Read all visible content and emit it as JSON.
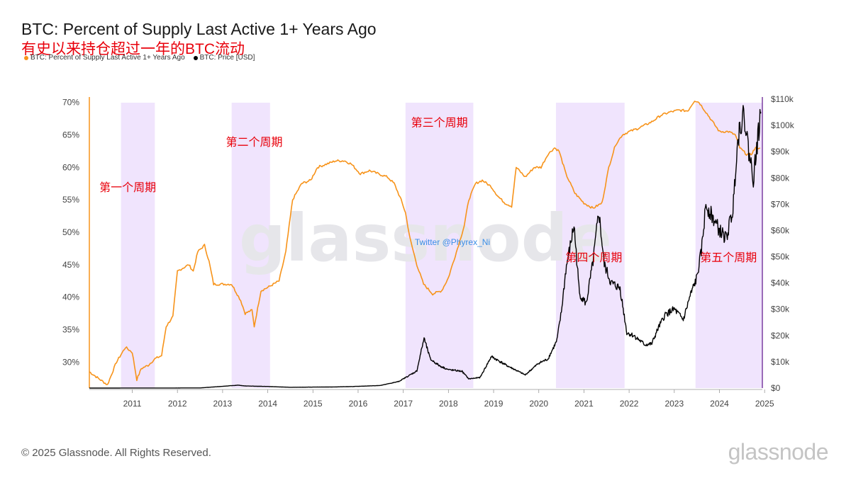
{
  "header": {
    "title": "BTC: Percent of Supply Last Active 1+ Years Ago",
    "subtitle": "有史以来持仓超过一年的BTC流动"
  },
  "legend": [
    {
      "label": "BTC: Percent of Supply Last Active 1+ Years Ago",
      "color": "#f7931a"
    },
    {
      "label": "BTC: Price [USD]",
      "color": "#000000"
    }
  ],
  "footer": {
    "copyright": "© 2025 Glassnode. All Rights Reserved.",
    "brand": "glassnode"
  },
  "watermark": "glassnode",
  "credit": "Twitter @Phyrex_Ni",
  "chart_data": {
    "type": "line",
    "x_range": [
      2010.55,
      2025.45
    ],
    "x_ticks": [
      "2011",
      "2012",
      "2013",
      "2014",
      "2015",
      "2016",
      "2017",
      "2018",
      "2019",
      "2020",
      "2021",
      "2022",
      "2023",
      "2024",
      "2025"
    ],
    "y_left": {
      "range": [
        26,
        70.5
      ],
      "ticks": [
        "70%",
        "65%",
        "60%",
        "55%",
        "50%",
        "45%",
        "40%",
        "35%",
        "30%"
      ],
      "values": [
        70,
        65,
        60,
        55,
        50,
        45,
        40,
        35,
        30
      ]
    },
    "y_right": {
      "range": [
        0,
        110000
      ],
      "ticks": [
        "$110k",
        "$100k",
        "$90k",
        "$80k",
        "$70k",
        "$60k",
        "$50k",
        "$40k",
        "$30k",
        "$20k",
        "$10k",
        "$0"
      ],
      "values": [
        110000,
        100000,
        90000,
        80000,
        70000,
        60000,
        50000,
        40000,
        30000,
        20000,
        10000,
        0
      ]
    },
    "series": [
      {
        "name": "BTC: Percent of Supply Last Active 1+ Years Ago",
        "axis": "left",
        "color": "#f7931a",
        "points": [
          [
            2010.55,
            28.5
          ],
          [
            2010.75,
            27.5
          ],
          [
            2010.95,
            26.5
          ],
          [
            2011.15,
            30
          ],
          [
            2011.35,
            32.3
          ],
          [
            2011.5,
            31.5
          ],
          [
            2011.6,
            27.3
          ],
          [
            2011.7,
            29
          ],
          [
            2011.85,
            29.5
          ],
          [
            2012.0,
            30.5
          ],
          [
            2012.15,
            31
          ],
          [
            2012.25,
            35.5
          ],
          [
            2012.4,
            37
          ],
          [
            2012.5,
            44
          ],
          [
            2012.75,
            45
          ],
          [
            2012.85,
            44
          ],
          [
            2012.95,
            47
          ],
          [
            2013.1,
            48
          ],
          [
            2013.2,
            45.5
          ],
          [
            2013.3,
            42
          ],
          [
            2013.45,
            42
          ],
          [
            2013.7,
            42
          ],
          [
            2013.9,
            39.5
          ],
          [
            2014.0,
            37.5
          ],
          [
            2014.15,
            38
          ],
          [
            2014.2,
            35.5
          ],
          [
            2014.35,
            41
          ],
          [
            2014.5,
            41.5
          ],
          [
            2014.75,
            42.5
          ],
          [
            2014.9,
            47
          ],
          [
            2015.05,
            55
          ],
          [
            2015.25,
            57.5
          ],
          [
            2015.45,
            58
          ],
          [
            2015.6,
            60
          ],
          [
            2015.8,
            60.5
          ],
          [
            2016.0,
            61
          ],
          [
            2016.2,
            61
          ],
          [
            2016.35,
            60.5
          ],
          [
            2016.55,
            59
          ],
          [
            2016.75,
            59.5
          ],
          [
            2016.95,
            59
          ],
          [
            2017.15,
            58.5
          ],
          [
            2017.3,
            57.5
          ],
          [
            2017.45,
            55
          ],
          [
            2017.55,
            53
          ],
          [
            2017.65,
            49
          ],
          [
            2017.8,
            45
          ],
          [
            2017.95,
            42
          ],
          [
            2018.15,
            40.5
          ],
          [
            2018.35,
            41
          ],
          [
            2018.5,
            43
          ],
          [
            2018.7,
            47.5
          ],
          [
            2018.85,
            51
          ],
          [
            2018.95,
            55
          ],
          [
            2019.1,
            57.5
          ],
          [
            2019.25,
            58
          ],
          [
            2019.45,
            57
          ],
          [
            2019.6,
            55.5
          ],
          [
            2019.75,
            54.5
          ],
          [
            2019.9,
            54
          ],
          [
            2020.0,
            60
          ],
          [
            2020.2,
            58.5
          ],
          [
            2020.4,
            60
          ],
          [
            2020.55,
            60
          ],
          [
            2020.7,
            62
          ],
          [
            2020.85,
            63
          ],
          [
            2020.95,
            62.5
          ],
          [
            2021.1,
            59
          ],
          [
            2021.3,
            56
          ],
          [
            2021.5,
            54.5
          ],
          [
            2021.7,
            53.7
          ],
          [
            2021.9,
            54.5
          ],
          [
            2022.05,
            60
          ],
          [
            2022.2,
            63.5
          ],
          [
            2022.35,
            65
          ],
          [
            2022.5,
            65.5
          ],
          [
            2022.7,
            66
          ],
          [
            2023.0,
            67
          ],
          [
            2023.2,
            68
          ],
          [
            2023.4,
            68.5
          ],
          [
            2023.6,
            68.8
          ],
          [
            2023.8,
            68.7
          ],
          [
            2023.95,
            70.3
          ],
          [
            2024.05,
            70
          ],
          [
            2024.2,
            68.5
          ],
          [
            2024.35,
            67
          ],
          [
            2024.5,
            65.5
          ],
          [
            2024.7,
            65.5
          ],
          [
            2024.85,
            65
          ],
          [
            2024.95,
            63
          ],
          [
            2025.1,
            62
          ],
          [
            2025.2,
            62
          ],
          [
            2025.3,
            63
          ],
          [
            2025.4,
            63
          ]
        ]
      },
      {
        "name": "BTC: Price [USD]",
        "axis": "right",
        "color": "#000000",
        "points": [
          [
            2010.55,
            0
          ],
          [
            2013.0,
            50
          ],
          [
            2013.85,
            1100
          ],
          [
            2014.0,
            800
          ],
          [
            2014.5,
            600
          ],
          [
            2015.0,
            300
          ],
          [
            2016.0,
            430
          ],
          [
            2016.5,
            650
          ],
          [
            2017.0,
            1000
          ],
          [
            2017.4,
            2500
          ],
          [
            2017.6,
            4500
          ],
          [
            2017.8,
            6500
          ],
          [
            2017.96,
            19000
          ],
          [
            2018.1,
            11000
          ],
          [
            2018.3,
            8500
          ],
          [
            2018.5,
            7000
          ],
          [
            2018.8,
            6400
          ],
          [
            2018.95,
            3500
          ],
          [
            2019.2,
            4000
          ],
          [
            2019.45,
            12000
          ],
          [
            2019.6,
            10500
          ],
          [
            2019.8,
            8500
          ],
          [
            2019.95,
            7200
          ],
          [
            2020.2,
            5000
          ],
          [
            2020.5,
            9500
          ],
          [
            2020.7,
            11000
          ],
          [
            2020.9,
            18000
          ],
          [
            2021.0,
            29000
          ],
          [
            2021.1,
            45000
          ],
          [
            2021.28,
            62000
          ],
          [
            2021.4,
            36000
          ],
          [
            2021.55,
            32000
          ],
          [
            2021.7,
            48000
          ],
          [
            2021.83,
            67000
          ],
          [
            2021.95,
            47000
          ],
          [
            2022.1,
            40000
          ],
          [
            2022.3,
            38000
          ],
          [
            2022.45,
            21000
          ],
          [
            2022.6,
            20000
          ],
          [
            2022.85,
            16500
          ],
          [
            2023.0,
            16800
          ],
          [
            2023.15,
            23000
          ],
          [
            2023.3,
            28000
          ],
          [
            2023.5,
            30000
          ],
          [
            2023.7,
            26000
          ],
          [
            2023.85,
            35000
          ],
          [
            2024.0,
            42000
          ],
          [
            2024.1,
            52000
          ],
          [
            2024.2,
            70000
          ],
          [
            2024.35,
            65000
          ],
          [
            2024.5,
            60000
          ],
          [
            2024.65,
            57000
          ],
          [
            2024.8,
            68000
          ],
          [
            2024.88,
            90000
          ],
          [
            2024.95,
            100000
          ],
          [
            2025.05,
            104000
          ],
          [
            2025.15,
            90000
          ],
          [
            2025.25,
            80000
          ],
          [
            2025.35,
            95000
          ],
          [
            2025.42,
            105000
          ]
        ]
      }
    ],
    "cycle_bands": [
      {
        "start": 2011.25,
        "end": 2012.0,
        "label": "第一个周期",
        "label_pos": [
          2011.4,
          56.3
        ]
      },
      {
        "start": 2013.7,
        "end": 2014.55,
        "label": "第二个周期",
        "label_pos": [
          2014.2,
          63.3
        ]
      },
      {
        "start": 2017.55,
        "end": 2019.05,
        "label": "第三个周期",
        "label_pos": [
          2018.3,
          66.3
        ]
      },
      {
        "start": 2020.88,
        "end": 2022.4,
        "label": "第四个周期",
        "label_pos": [
          2021.72,
          45.5
        ]
      },
      {
        "start": 2023.97,
        "end": 2025.45,
        "label": "第五个周期",
        "label_pos": [
          2024.7,
          45.5
        ]
      }
    ]
  }
}
